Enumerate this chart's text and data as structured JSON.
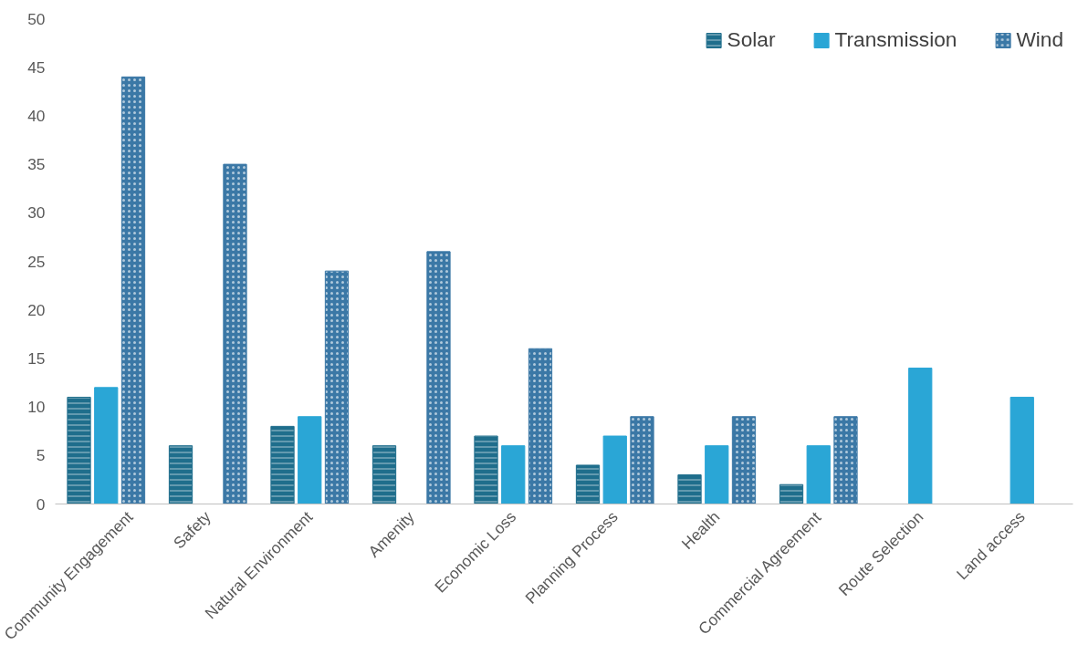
{
  "chart_data": {
    "type": "bar",
    "categories": [
      "Community Engagement",
      "Safety",
      "Natural Environment",
      "Amenity",
      "Economic Loss",
      "Planning Process",
      "Health",
      "Commercial Agreement",
      "Route Selection",
      "Land access"
    ],
    "series": [
      {
        "name": "Solar",
        "color": "#1f6e8c",
        "values": [
          11,
          6,
          8,
          6,
          7,
          4,
          3,
          2,
          null,
          null
        ]
      },
      {
        "name": "Transmission",
        "color": "#2aa6d6",
        "values": [
          12,
          null,
          9,
          null,
          6,
          7,
          6,
          6,
          14,
          11
        ]
      },
      {
        "name": "Wind",
        "color": "#3b78a6",
        "values": [
          44,
          35,
          24,
          26,
          16,
          9,
          9,
          9,
          null,
          null
        ]
      }
    ],
    "ylim": [
      0,
      50
    ],
    "yticks": [
      0,
      5,
      10,
      15,
      20,
      25,
      30,
      35,
      40,
      45,
      50
    ],
    "grid": false,
    "legend": "top right"
  }
}
